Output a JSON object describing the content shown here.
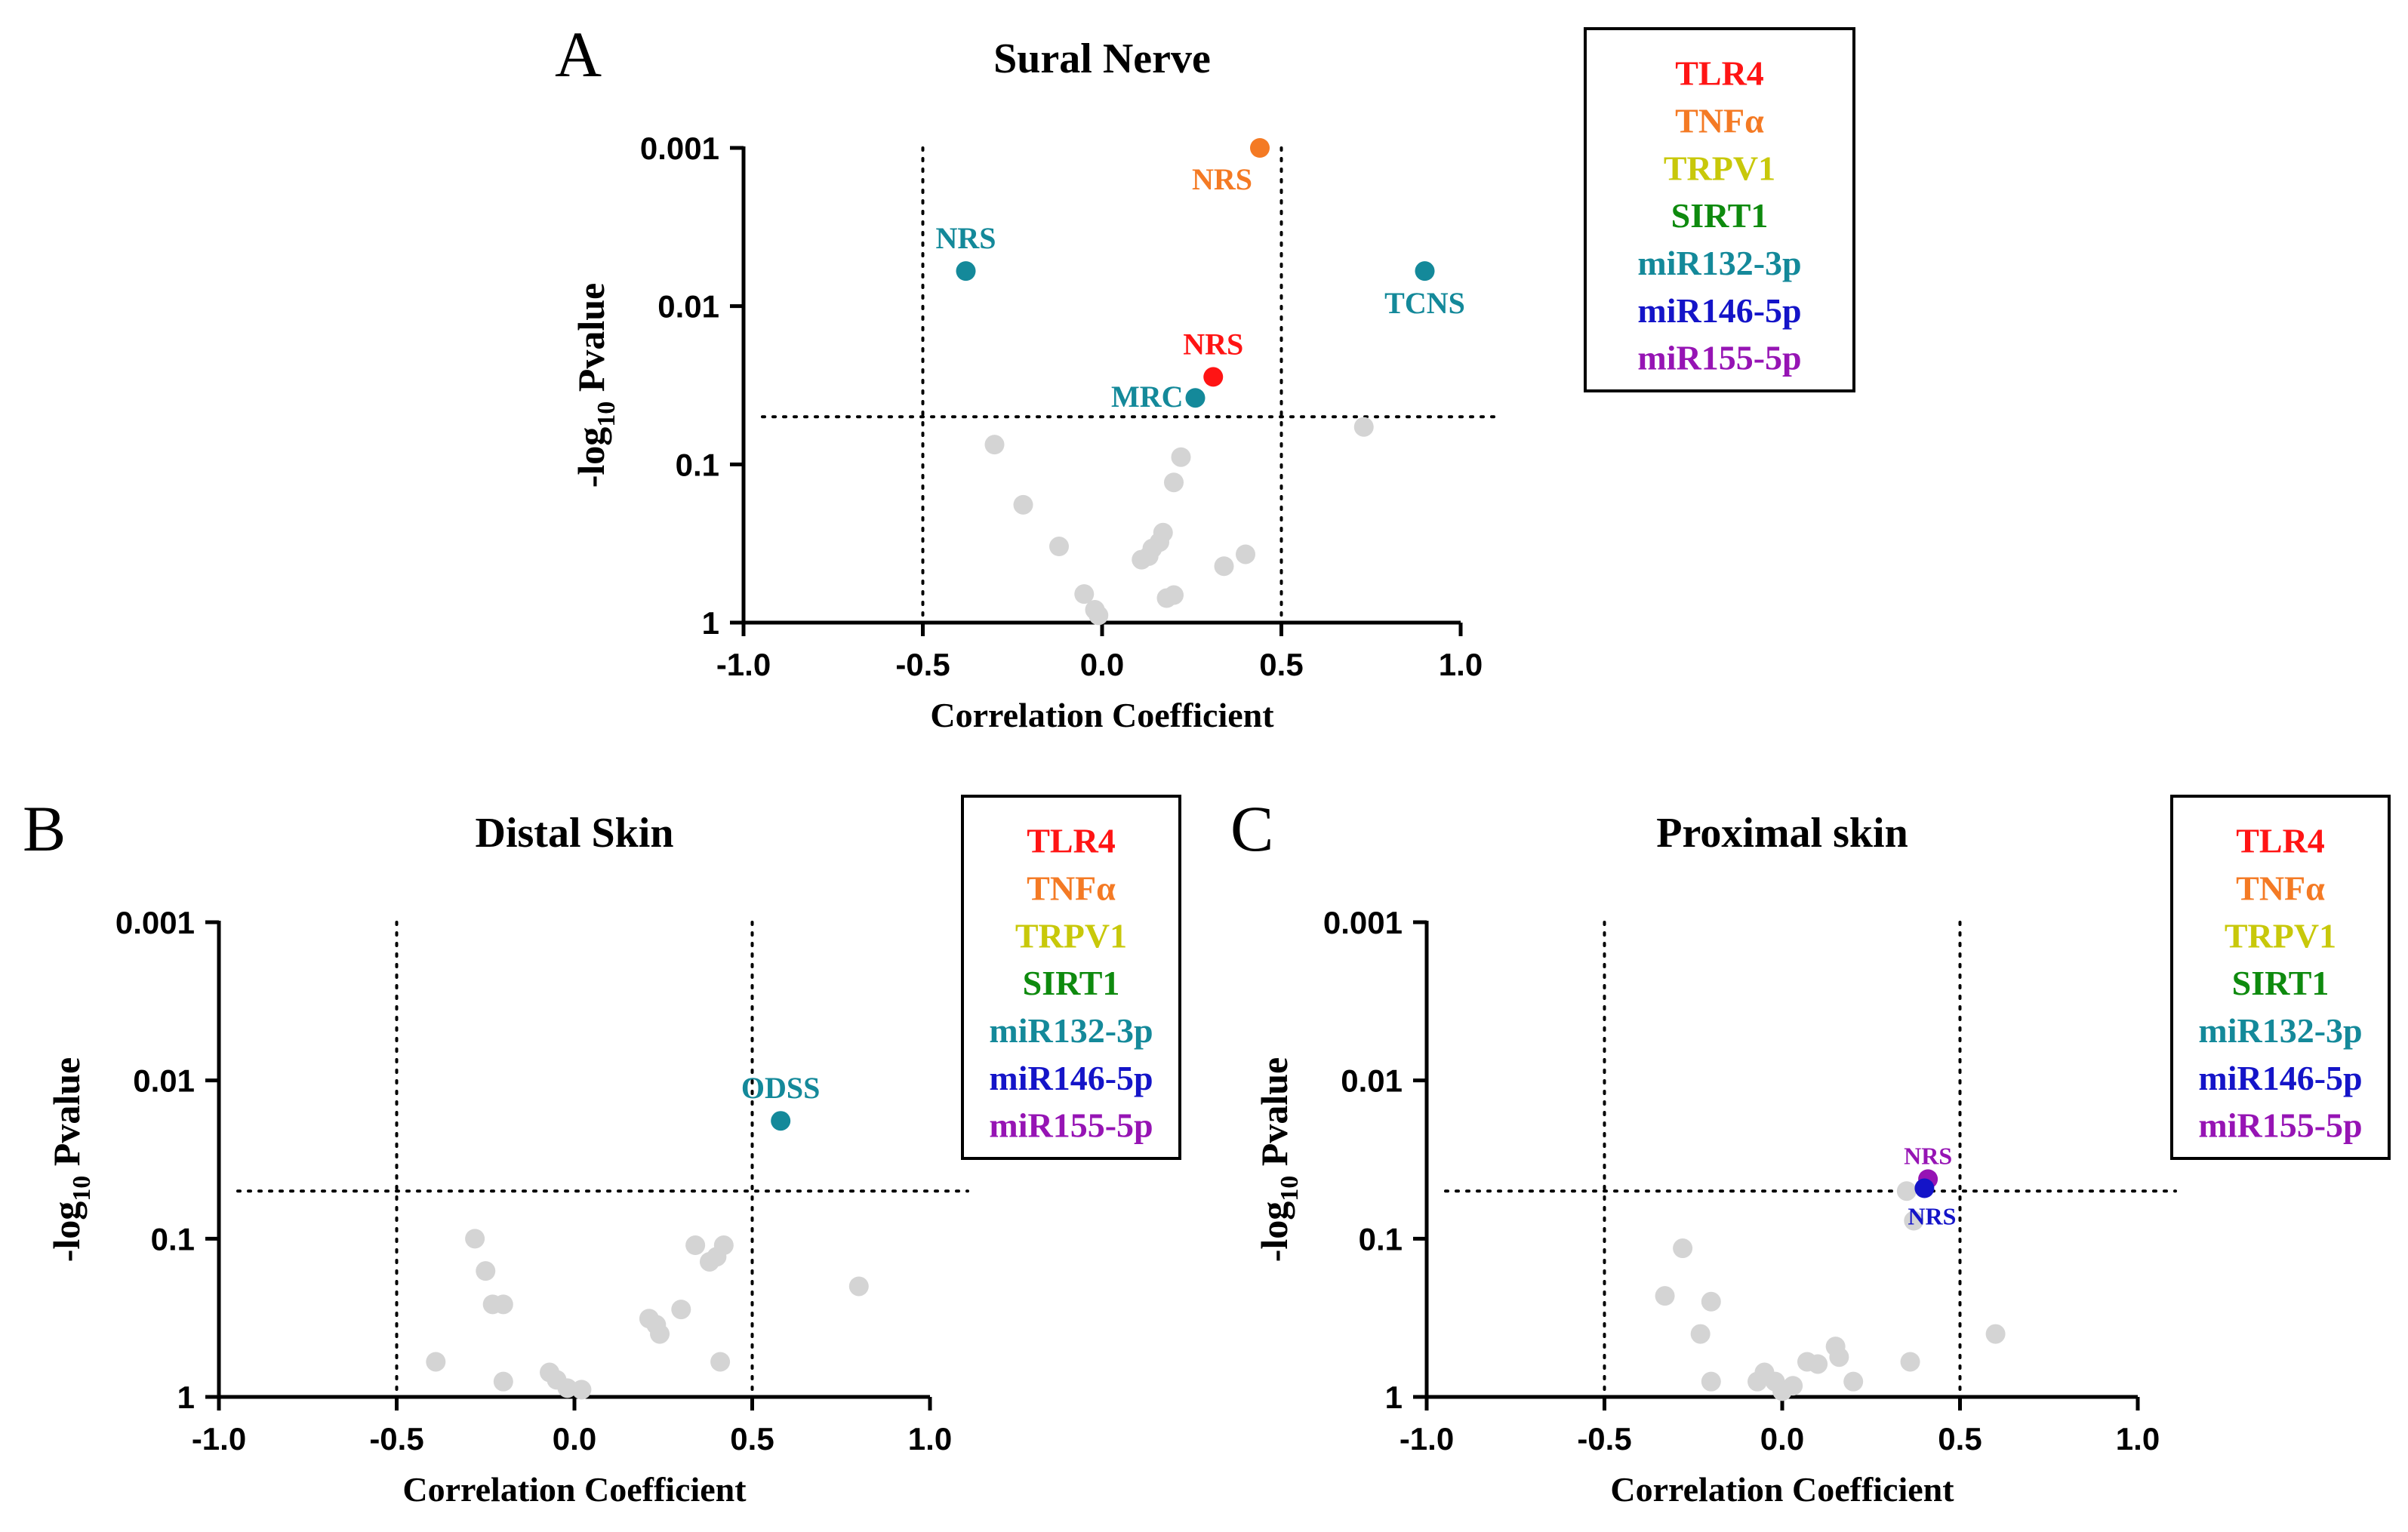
{
  "legend_entries": [
    {
      "label": "TLR4",
      "color": "#ff1414"
    },
    {
      "label": "TNFα",
      "color": "#f47a24"
    },
    {
      "label": "TRPV1",
      "color": "#c8c80a"
    },
    {
      "label": "SIRT1",
      "color": "#0e8a0e"
    },
    {
      "label": "miR132-3p",
      "color": "#14899a"
    },
    {
      "label": "miR146-5p",
      "color": "#1414c8"
    },
    {
      "label": "miR155-5p",
      "color": "#9614b4"
    }
  ],
  "neutral_color": "#d4d4d4",
  "chart_data": [
    {
      "type": "scatter",
      "panel_letter": "A",
      "title": "Sural Nerve",
      "xlabel": "Correlation Coefficient",
      "ylabel": {
        "prefix": "-log",
        "subscript": "10",
        "suffix": " Pvalue"
      },
      "xlim": [
        -1.0,
        1.0
      ],
      "ylim": [
        1,
        0.001
      ],
      "yscale": "log",
      "xticks": [
        -1.0,
        -0.5,
        0.0,
        0.5,
        1.0
      ],
      "xtick_labels": [
        "-1.0",
        "-0.5",
        "0.0",
        "0.5",
        "1.0"
      ],
      "yticks": [
        0.001,
        0.01,
        0.1,
        1
      ],
      "ytick_labels": [
        "0.001",
        "0.01",
        "0.1",
        "1"
      ],
      "threshold_x": [
        -0.5,
        0.5
      ],
      "threshold_y": 0.05,
      "highlighted": [
        {
          "x": 0.44,
          "p": 0.001,
          "series": "TNFα",
          "label": "NRS",
          "label_pos": "left-below"
        },
        {
          "x": -0.38,
          "p": 0.006,
          "series": "miR132-3p",
          "label": "NRS",
          "label_pos": "above"
        },
        {
          "x": 0.9,
          "p": 0.006,
          "series": "miR132-3p",
          "label": "TCNS",
          "label_pos": "below"
        },
        {
          "x": 0.31,
          "p": 0.028,
          "series": "TLR4",
          "label": "NRS",
          "label_pos": "above"
        },
        {
          "x": 0.26,
          "p": 0.038,
          "series": "miR132-3p",
          "label": "MRC",
          "label_pos": "left"
        }
      ],
      "nonsignificant": [
        {
          "x": -0.3,
          "p": 0.075
        },
        {
          "x": 0.22,
          "p": 0.09
        },
        {
          "x": 0.2,
          "p": 0.13
        },
        {
          "x": -0.22,
          "p": 0.18
        },
        {
          "x": -0.12,
          "p": 0.33
        },
        {
          "x": 0.17,
          "p": 0.27
        },
        {
          "x": 0.16,
          "p": 0.31
        },
        {
          "x": 0.13,
          "p": 0.38
        },
        {
          "x": 0.11,
          "p": 0.4
        },
        {
          "x": 0.14,
          "p": 0.34
        },
        {
          "x": 0.4,
          "p": 0.37
        },
        {
          "x": 0.34,
          "p": 0.44
        },
        {
          "x": 0.2,
          "p": 0.67
        },
        {
          "x": 0.18,
          "p": 0.7
        },
        {
          "x": -0.05,
          "p": 0.66
        },
        {
          "x": -0.02,
          "p": 0.83
        },
        {
          "x": -0.01,
          "p": 0.9
        },
        {
          "x": 0.73,
          "p": 0.058
        }
      ]
    },
    {
      "type": "scatter",
      "panel_letter": "B",
      "title": "Distal  Skin",
      "xlabel": "Correlation Coefficient",
      "ylabel": {
        "prefix": "-log",
        "subscript": "10",
        "suffix": " Pvalue"
      },
      "xlim": [
        -1.0,
        1.0
      ],
      "ylim": [
        1,
        0.001
      ],
      "yscale": "log",
      "xticks": [
        -1.0,
        -0.5,
        0.0,
        0.5,
        1.0
      ],
      "xtick_labels": [
        "-1.0",
        "-0.5",
        "0.0",
        "0.5",
        "1.0"
      ],
      "yticks": [
        0.001,
        0.01,
        0.1,
        1
      ],
      "ytick_labels": [
        "0.001",
        "0.01",
        "0.1",
        "1"
      ],
      "threshold_x": [
        -0.5,
        0.5
      ],
      "threshold_y": 0.05,
      "highlighted": [
        {
          "x": 0.58,
          "p": 0.018,
          "series": "miR132-3p",
          "label": "ODSS",
          "label_pos": "above"
        }
      ],
      "nonsignificant": [
        {
          "x": -0.28,
          "p": 0.1
        },
        {
          "x": -0.25,
          "p": 0.16
        },
        {
          "x": -0.23,
          "p": 0.26
        },
        {
          "x": -0.2,
          "p": 0.26
        },
        {
          "x": -0.39,
          "p": 0.6
        },
        {
          "x": -0.2,
          "p": 0.8
        },
        {
          "x": 0.34,
          "p": 0.11
        },
        {
          "x": 0.4,
          "p": 0.13
        },
        {
          "x": 0.42,
          "p": 0.11
        },
        {
          "x": 0.38,
          "p": 0.14
        },
        {
          "x": 0.3,
          "p": 0.28
        },
        {
          "x": 0.21,
          "p": 0.32
        },
        {
          "x": 0.23,
          "p": 0.35
        },
        {
          "x": 0.24,
          "p": 0.4
        },
        {
          "x": 0.8,
          "p": 0.2
        },
        {
          "x": 0.41,
          "p": 0.6
        },
        {
          "x": -0.07,
          "p": 0.7
        },
        {
          "x": -0.05,
          "p": 0.78
        },
        {
          "x": 0.02,
          "p": 0.9
        },
        {
          "x": -0.02,
          "p": 0.88
        }
      ]
    },
    {
      "type": "scatter",
      "panel_letter": "C",
      "title": "Proximal skin",
      "xlabel": "Correlation Coefficient",
      "ylabel": {
        "prefix": "-log",
        "subscript": "10",
        "suffix": " Pvalue"
      },
      "xlim": [
        -1.0,
        1.0
      ],
      "ylim": [
        1,
        0.001
      ],
      "yscale": "log",
      "xticks": [
        -1.0,
        -0.5,
        0.0,
        0.5,
        1.0
      ],
      "xtick_labels": [
        "-1.0",
        "-0.5",
        "0.0",
        "0.5",
        "1.0"
      ],
      "yticks": [
        0.001,
        0.01,
        0.1,
        1
      ],
      "ytick_labels": [
        "0.001",
        "0.01",
        "0.1",
        "1"
      ],
      "threshold_x": [
        -0.5,
        0.5
      ],
      "threshold_y": 0.05,
      "highlighted": [
        {
          "x": 0.41,
          "p": 0.042,
          "series": "miR155-5p",
          "label": "NRS",
          "label_pos": "above"
        },
        {
          "x": 0.4,
          "p": 0.048,
          "series": "miR146-5p",
          "label": "NRS",
          "label_pos": "below"
        }
      ],
      "nonsignificant": [
        {
          "x": 0.35,
          "p": 0.05
        },
        {
          "x": 0.37,
          "p": 0.077
        },
        {
          "x": -0.28,
          "p": 0.115
        },
        {
          "x": -0.33,
          "p": 0.23
        },
        {
          "x": -0.2,
          "p": 0.25
        },
        {
          "x": -0.23,
          "p": 0.4
        },
        {
          "x": -0.2,
          "p": 0.8
        },
        {
          "x": 0.6,
          "p": 0.4
        },
        {
          "x": 0.36,
          "p": 0.6
        },
        {
          "x": 0.15,
          "p": 0.48
        },
        {
          "x": 0.16,
          "p": 0.56
        },
        {
          "x": 0.1,
          "p": 0.62
        },
        {
          "x": 0.07,
          "p": 0.6
        },
        {
          "x": 0.2,
          "p": 0.8
        },
        {
          "x": -0.05,
          "p": 0.7
        },
        {
          "x": -0.02,
          "p": 0.8
        },
        {
          "x": 0.0,
          "p": 0.92
        },
        {
          "x": -0.07,
          "p": 0.8
        },
        {
          "x": 0.03,
          "p": 0.85
        }
      ]
    }
  ]
}
